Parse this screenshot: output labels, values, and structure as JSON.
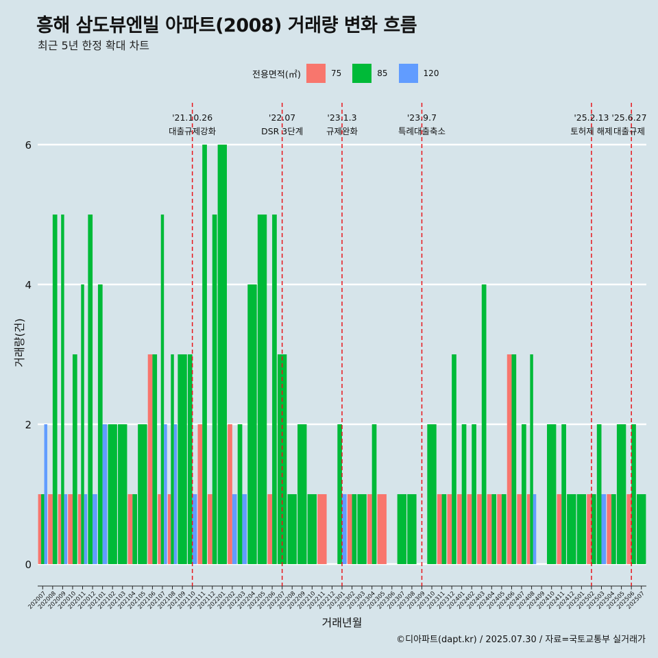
{
  "title": "흥해 삼도뷰엔빌 아파트(2008) 거래량 변화 흐름",
  "subtitle": "최근 5년 한정 확대 차트",
  "caption": "©디아파트(dapt.kr) / 2025.07.30 / 자료=국토교통부 실거래가",
  "legend": {
    "title": "전용면적(㎡)",
    "items": [
      {
        "label": "75",
        "color": "#f8766d"
      },
      {
        "label": "85",
        "color": "#00ba38"
      },
      {
        "label": "120",
        "color": "#619cff"
      }
    ]
  },
  "chart_data": {
    "type": "bar",
    "xlabel": "거래년월",
    "ylabel": "거래량(건)",
    "ylim": [
      0,
      6
    ],
    "yticks": [
      0,
      2,
      4,
      6
    ],
    "grid": true,
    "categories": [
      "202007",
      "202008",
      "202009",
      "202010",
      "202011",
      "202012",
      "202101",
      "202102",
      "202103",
      "202104",
      "202105",
      "202106",
      "202107",
      "202108",
      "202109",
      "202110",
      "202111",
      "202112",
      "202201",
      "202202",
      "202203",
      "202204",
      "202205",
      "202206",
      "202207",
      "202208",
      "202209",
      "202210",
      "202211",
      "202212",
      "202301",
      "202302",
      "202303",
      "202304",
      "202305",
      "202306",
      "202307",
      "202308",
      "202309",
      "202310",
      "202311",
      "202312",
      "202401",
      "202402",
      "202403",
      "202404",
      "202405",
      "202406",
      "202407",
      "202408",
      "202409",
      "202410",
      "202411",
      "202412",
      "202501",
      "202502",
      "202503",
      "202504",
      "202505",
      "202506",
      "202507"
    ],
    "series": [
      {
        "name": "75",
        "values": [
          1,
          1,
          1,
          1,
          1,
          0,
          0,
          0,
          0,
          1,
          0,
          3,
          1,
          1,
          0,
          0,
          2,
          1,
          0,
          2,
          0,
          0,
          0,
          1,
          0,
          0,
          0,
          0,
          1,
          0,
          0,
          1,
          0,
          1,
          1,
          0,
          0,
          0,
          0,
          0,
          1,
          1,
          1,
          1,
          1,
          1,
          1,
          3,
          1,
          1,
          0,
          0,
          1,
          0,
          0,
          1,
          0,
          1,
          0,
          1,
          0
        ]
      },
      {
        "name": "85",
        "values": [
          1,
          5,
          5,
          3,
          4,
          5,
          4,
          2,
          2,
          1,
          2,
          3,
          5,
          3,
          3,
          3,
          6,
          5,
          6,
          0,
          2,
          4,
          5,
          5,
          3,
          1,
          2,
          1,
          0,
          0,
          2,
          1,
          1,
          2,
          0,
          0,
          1,
          1,
          0,
          2,
          1,
          3,
          2,
          2,
          4,
          1,
          1,
          3,
          2,
          3,
          0,
          2,
          2,
          1,
          1,
          1,
          2,
          1,
          2,
          2,
          1
        ]
      },
      {
        "name": "120",
        "values": [
          2,
          0,
          1,
          0,
          1,
          1,
          2,
          0,
          0,
          0,
          0,
          0,
          2,
          2,
          0,
          1,
          0,
          0,
          0,
          1,
          1,
          0,
          0,
          0,
          0,
          0,
          0,
          0,
          0,
          0,
          1,
          0,
          0,
          0,
          0,
          0,
          0,
          0,
          0,
          0,
          0,
          0,
          0,
          0,
          0,
          0,
          0,
          0,
          0,
          1,
          0,
          0,
          0,
          0,
          0,
          0,
          1,
          0,
          0,
          0,
          0
        ]
      }
    ],
    "annotations": [
      {
        "date": "'21.10.26",
        "text": "대출규제강화",
        "x": "202110"
      },
      {
        "date": "'22.07",
        "text": "DSR 3단계",
        "x": "202207"
      },
      {
        "date": "'23.1.3",
        "text": "규제완화",
        "x": "202301"
      },
      {
        "date": "'23.9.7",
        "text": "특례대출축소",
        "x": "202309"
      },
      {
        "date": "'25.2.13",
        "text": "토허제 해제",
        "x": "202502"
      },
      {
        "date": "'25.6.27",
        "text": "대출규제",
        "x": "202506"
      }
    ]
  }
}
